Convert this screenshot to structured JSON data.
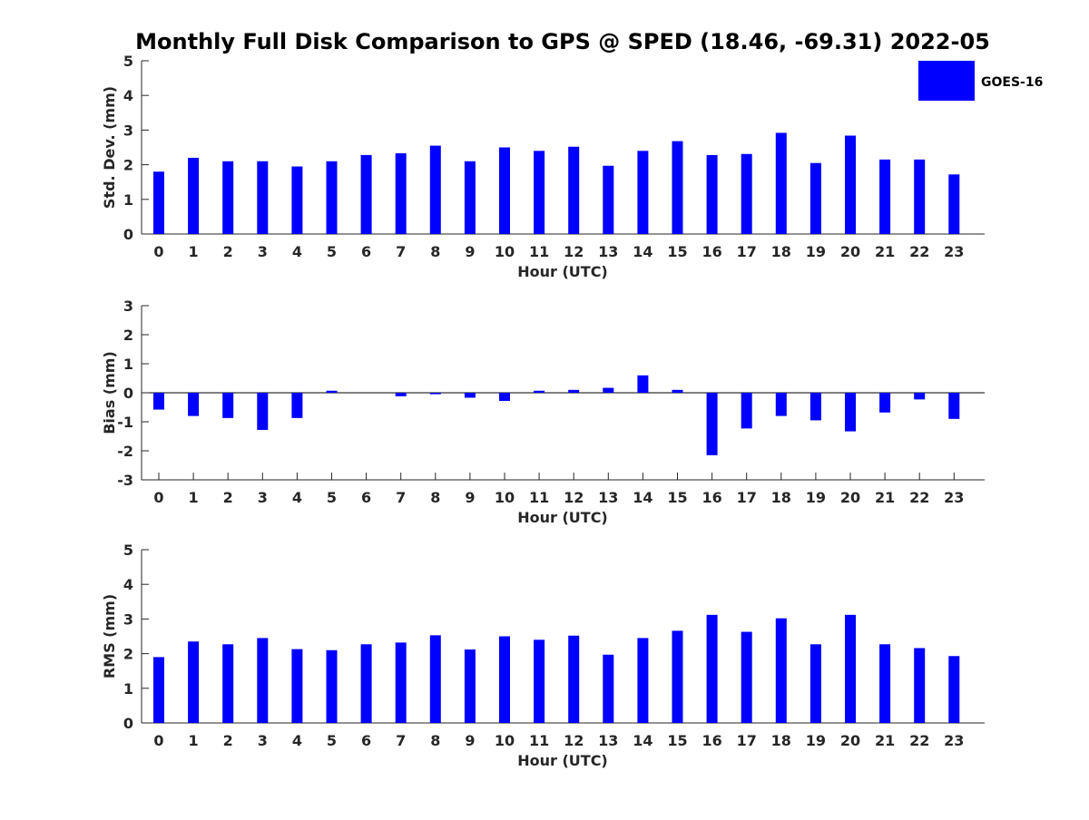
{
  "title": "Monthly Full Disk Comparison to GPS @ SPED (18.46, -69.31) 2022-05",
  "colors": {
    "bar": "#0000ff",
    "axis": "#262626"
  },
  "legend": {
    "label": "GOES-16",
    "position": "top-right"
  },
  "chart_data": [
    {
      "type": "bar",
      "categories": [
        "0",
        "1",
        "2",
        "3",
        "4",
        "5",
        "6",
        "7",
        "8",
        "9",
        "10",
        "11",
        "12",
        "13",
        "14",
        "15",
        "16",
        "17",
        "18",
        "19",
        "20",
        "21",
        "22",
        "23"
      ],
      "series": [
        {
          "name": "GOES-16",
          "values": [
            1.8,
            2.2,
            2.1,
            2.1,
            1.95,
            2.1,
            2.28,
            2.33,
            2.55,
            2.1,
            2.5,
            2.4,
            2.52,
            1.97,
            2.4,
            2.68,
            2.28,
            2.31,
            2.92,
            2.05,
            2.84,
            2.15,
            2.15,
            1.72
          ]
        }
      ],
      "xlabel": "Hour (UTC)",
      "ylabel": "Std. Dev. (mm)",
      "ylim": [
        0,
        5
      ],
      "yticks": [
        "0",
        "1",
        "2",
        "3",
        "4",
        "5"
      ],
      "grid": false
    },
    {
      "type": "bar",
      "categories": [
        "0",
        "1",
        "2",
        "3",
        "4",
        "5",
        "6",
        "7",
        "8",
        "9",
        "10",
        "11",
        "12",
        "13",
        "14",
        "15",
        "16",
        "17",
        "18",
        "19",
        "20",
        "21",
        "22",
        "23"
      ],
      "series": [
        {
          "name": "GOES-16",
          "values": [
            -0.58,
            -0.8,
            -0.87,
            -1.28,
            -0.87,
            0.07,
            0.0,
            -0.12,
            -0.05,
            -0.17,
            -0.28,
            0.07,
            0.1,
            0.17,
            0.6,
            0.1,
            -2.15,
            -1.23,
            -0.8,
            -0.95,
            -1.33,
            -0.68,
            -0.23,
            -0.9
          ]
        }
      ],
      "xlabel": "Hour (UTC)",
      "ylabel": "Bias (mm)",
      "ylim": [
        -3,
        3
      ],
      "yticks": [
        "-3",
        "-2",
        "-1",
        "0",
        "1",
        "2",
        "3"
      ],
      "grid": false
    },
    {
      "type": "bar",
      "categories": [
        "0",
        "1",
        "2",
        "3",
        "4",
        "5",
        "6",
        "7",
        "8",
        "9",
        "10",
        "11",
        "12",
        "13",
        "14",
        "15",
        "16",
        "17",
        "18",
        "19",
        "20",
        "21",
        "22",
        "23"
      ],
      "series": [
        {
          "name": "GOES-16",
          "values": [
            1.9,
            2.35,
            2.27,
            2.45,
            2.13,
            2.1,
            2.27,
            2.32,
            2.53,
            2.12,
            2.5,
            2.4,
            2.52,
            1.97,
            2.45,
            2.66,
            3.12,
            2.63,
            3.02,
            2.27,
            3.12,
            2.27,
            2.16,
            1.93
          ]
        }
      ],
      "xlabel": "Hour (UTC)",
      "ylabel": "RMS (mm)",
      "ylim": [
        0,
        5
      ],
      "yticks": [
        "0",
        "1",
        "2",
        "3",
        "4",
        "5"
      ],
      "grid": false
    }
  ]
}
